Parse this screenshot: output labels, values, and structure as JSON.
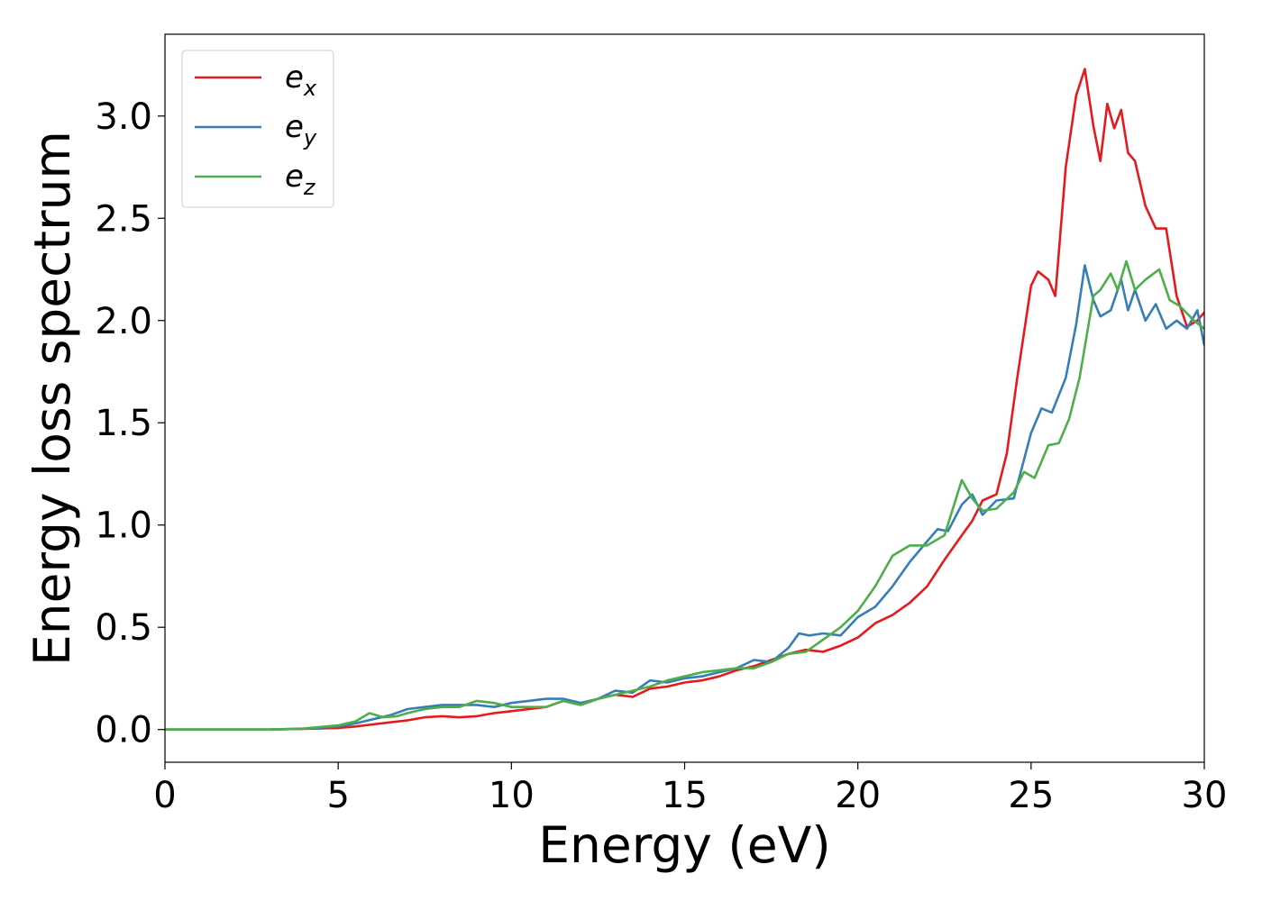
{
  "chart_data": {
    "type": "line",
    "xlabel": "Energy (eV)",
    "ylabel": "Energy loss spectrum",
    "xlim": [
      0,
      30
    ],
    "ylim": [
      -0.16,
      3.4
    ],
    "xticks": [
      0,
      5,
      10,
      15,
      20,
      25,
      30
    ],
    "xtick_labels": [
      "0",
      "5",
      "10",
      "15",
      "20",
      "25",
      "30"
    ],
    "yticks": [
      0.0,
      0.5,
      1.0,
      1.5,
      2.0,
      2.5,
      3.0
    ],
    "ytick_labels": [
      "0.0",
      "0.5",
      "1.0",
      "1.5",
      "2.0",
      "2.5",
      "3.0"
    ],
    "grid": false,
    "legend_position": "top-left",
    "series": [
      {
        "name": "e",
        "subscript": "x",
        "color": "#e41a1c",
        "x": [
          0,
          3,
          4,
          5,
          5.5,
          6,
          6.5,
          7,
          7.5,
          8,
          8.5,
          9,
          9.5,
          10,
          10.5,
          11,
          11.5,
          12,
          12.5,
          13,
          13.5,
          14,
          14.5,
          15,
          15.5,
          16,
          16.5,
          17,
          17.5,
          18,
          18.5,
          19,
          19.5,
          20,
          20.5,
          21,
          21.5,
          22,
          22.5,
          23,
          23.3,
          23.6,
          24,
          24.3,
          24.6,
          25,
          25.2,
          25.5,
          25.7,
          26,
          26.3,
          26.55,
          26.8,
          27,
          27.2,
          27.4,
          27.6,
          27.8,
          28,
          28.3,
          28.6,
          28.9,
          29.2,
          29.5,
          29.8,
          30
        ],
        "y": [
          0.0,
          0.0,
          0.003,
          0.008,
          0.015,
          0.025,
          0.035,
          0.045,
          0.06,
          0.065,
          0.06,
          0.065,
          0.08,
          0.09,
          0.1,
          0.11,
          0.14,
          0.12,
          0.15,
          0.17,
          0.16,
          0.2,
          0.21,
          0.23,
          0.24,
          0.26,
          0.29,
          0.31,
          0.34,
          0.37,
          0.39,
          0.38,
          0.41,
          0.45,
          0.52,
          0.56,
          0.62,
          0.7,
          0.83,
          0.95,
          1.02,
          1.12,
          1.15,
          1.35,
          1.72,
          2.17,
          2.24,
          2.2,
          2.12,
          2.75,
          3.1,
          3.23,
          2.95,
          2.78,
          3.06,
          2.94,
          3.03,
          2.82,
          2.78,
          2.56,
          2.45,
          2.45,
          2.12,
          1.97,
          2.0,
          2.04
        ]
      },
      {
        "name": "e",
        "subscript": "y",
        "color": "#377eb8",
        "x": [
          0,
          3,
          4,
          5,
          5.5,
          6,
          6.5,
          7,
          7.5,
          8,
          8.5,
          9,
          9.5,
          10,
          10.5,
          11,
          11.5,
          12,
          12.5,
          13,
          13.5,
          14,
          14.5,
          15,
          15.5,
          16,
          16.5,
          17,
          17.5,
          18,
          18.3,
          18.6,
          19,
          19.5,
          20,
          20.5,
          21,
          21.5,
          22,
          22.3,
          22.6,
          23,
          23.3,
          23.6,
          24,
          24.5,
          25,
          25.3,
          25.6,
          26,
          26.3,
          26.55,
          26.8,
          27,
          27.3,
          27.6,
          27.8,
          28,
          28.3,
          28.6,
          28.9,
          29.2,
          29.5,
          29.8,
          30
        ],
        "y": [
          0.0,
          0.0,
          0.004,
          0.015,
          0.03,
          0.05,
          0.07,
          0.1,
          0.11,
          0.12,
          0.12,
          0.12,
          0.11,
          0.13,
          0.14,
          0.15,
          0.15,
          0.13,
          0.15,
          0.19,
          0.18,
          0.24,
          0.23,
          0.25,
          0.26,
          0.28,
          0.3,
          0.34,
          0.33,
          0.4,
          0.47,
          0.46,
          0.47,
          0.46,
          0.55,
          0.6,
          0.7,
          0.82,
          0.92,
          0.98,
          0.97,
          1.1,
          1.15,
          1.05,
          1.12,
          1.13,
          1.45,
          1.57,
          1.55,
          1.72,
          1.98,
          2.27,
          2.1,
          2.02,
          2.05,
          2.2,
          2.05,
          2.15,
          2.0,
          2.08,
          1.96,
          2.0,
          1.96,
          2.05,
          1.88
        ]
      },
      {
        "name": "e",
        "subscript": "z",
        "color": "#4daf4a",
        "x": [
          0,
          3,
          4,
          5,
          5.5,
          5.9,
          6.3,
          6.7,
          7,
          7.5,
          8,
          8.5,
          9,
          9.5,
          10,
          10.5,
          11,
          11.5,
          12,
          12.5,
          13,
          13.5,
          14,
          14.5,
          15,
          15.5,
          16,
          16.5,
          17,
          17.5,
          18,
          18.5,
          19,
          19.5,
          20,
          20.5,
          21,
          21.5,
          22,
          22.5,
          23,
          23.3,
          23.6,
          24,
          24.5,
          24.8,
          25.1,
          25.5,
          25.8,
          26.1,
          26.4,
          26.8,
          27,
          27.3,
          27.5,
          27.75,
          28,
          28.3,
          28.7,
          29,
          29.3,
          29.7,
          30
        ],
        "y": [
          0.0,
          0.0,
          0.005,
          0.02,
          0.04,
          0.08,
          0.06,
          0.065,
          0.08,
          0.1,
          0.11,
          0.11,
          0.14,
          0.13,
          0.11,
          0.11,
          0.11,
          0.14,
          0.12,
          0.15,
          0.17,
          0.19,
          0.21,
          0.24,
          0.26,
          0.28,
          0.29,
          0.3,
          0.3,
          0.33,
          0.37,
          0.38,
          0.44,
          0.5,
          0.58,
          0.7,
          0.85,
          0.9,
          0.9,
          0.95,
          1.22,
          1.13,
          1.07,
          1.08,
          1.16,
          1.26,
          1.23,
          1.39,
          1.4,
          1.52,
          1.72,
          2.12,
          2.15,
          2.23,
          2.15,
          2.29,
          2.15,
          2.2,
          2.25,
          2.1,
          2.07,
          2.0,
          1.96
        ]
      }
    ]
  }
}
